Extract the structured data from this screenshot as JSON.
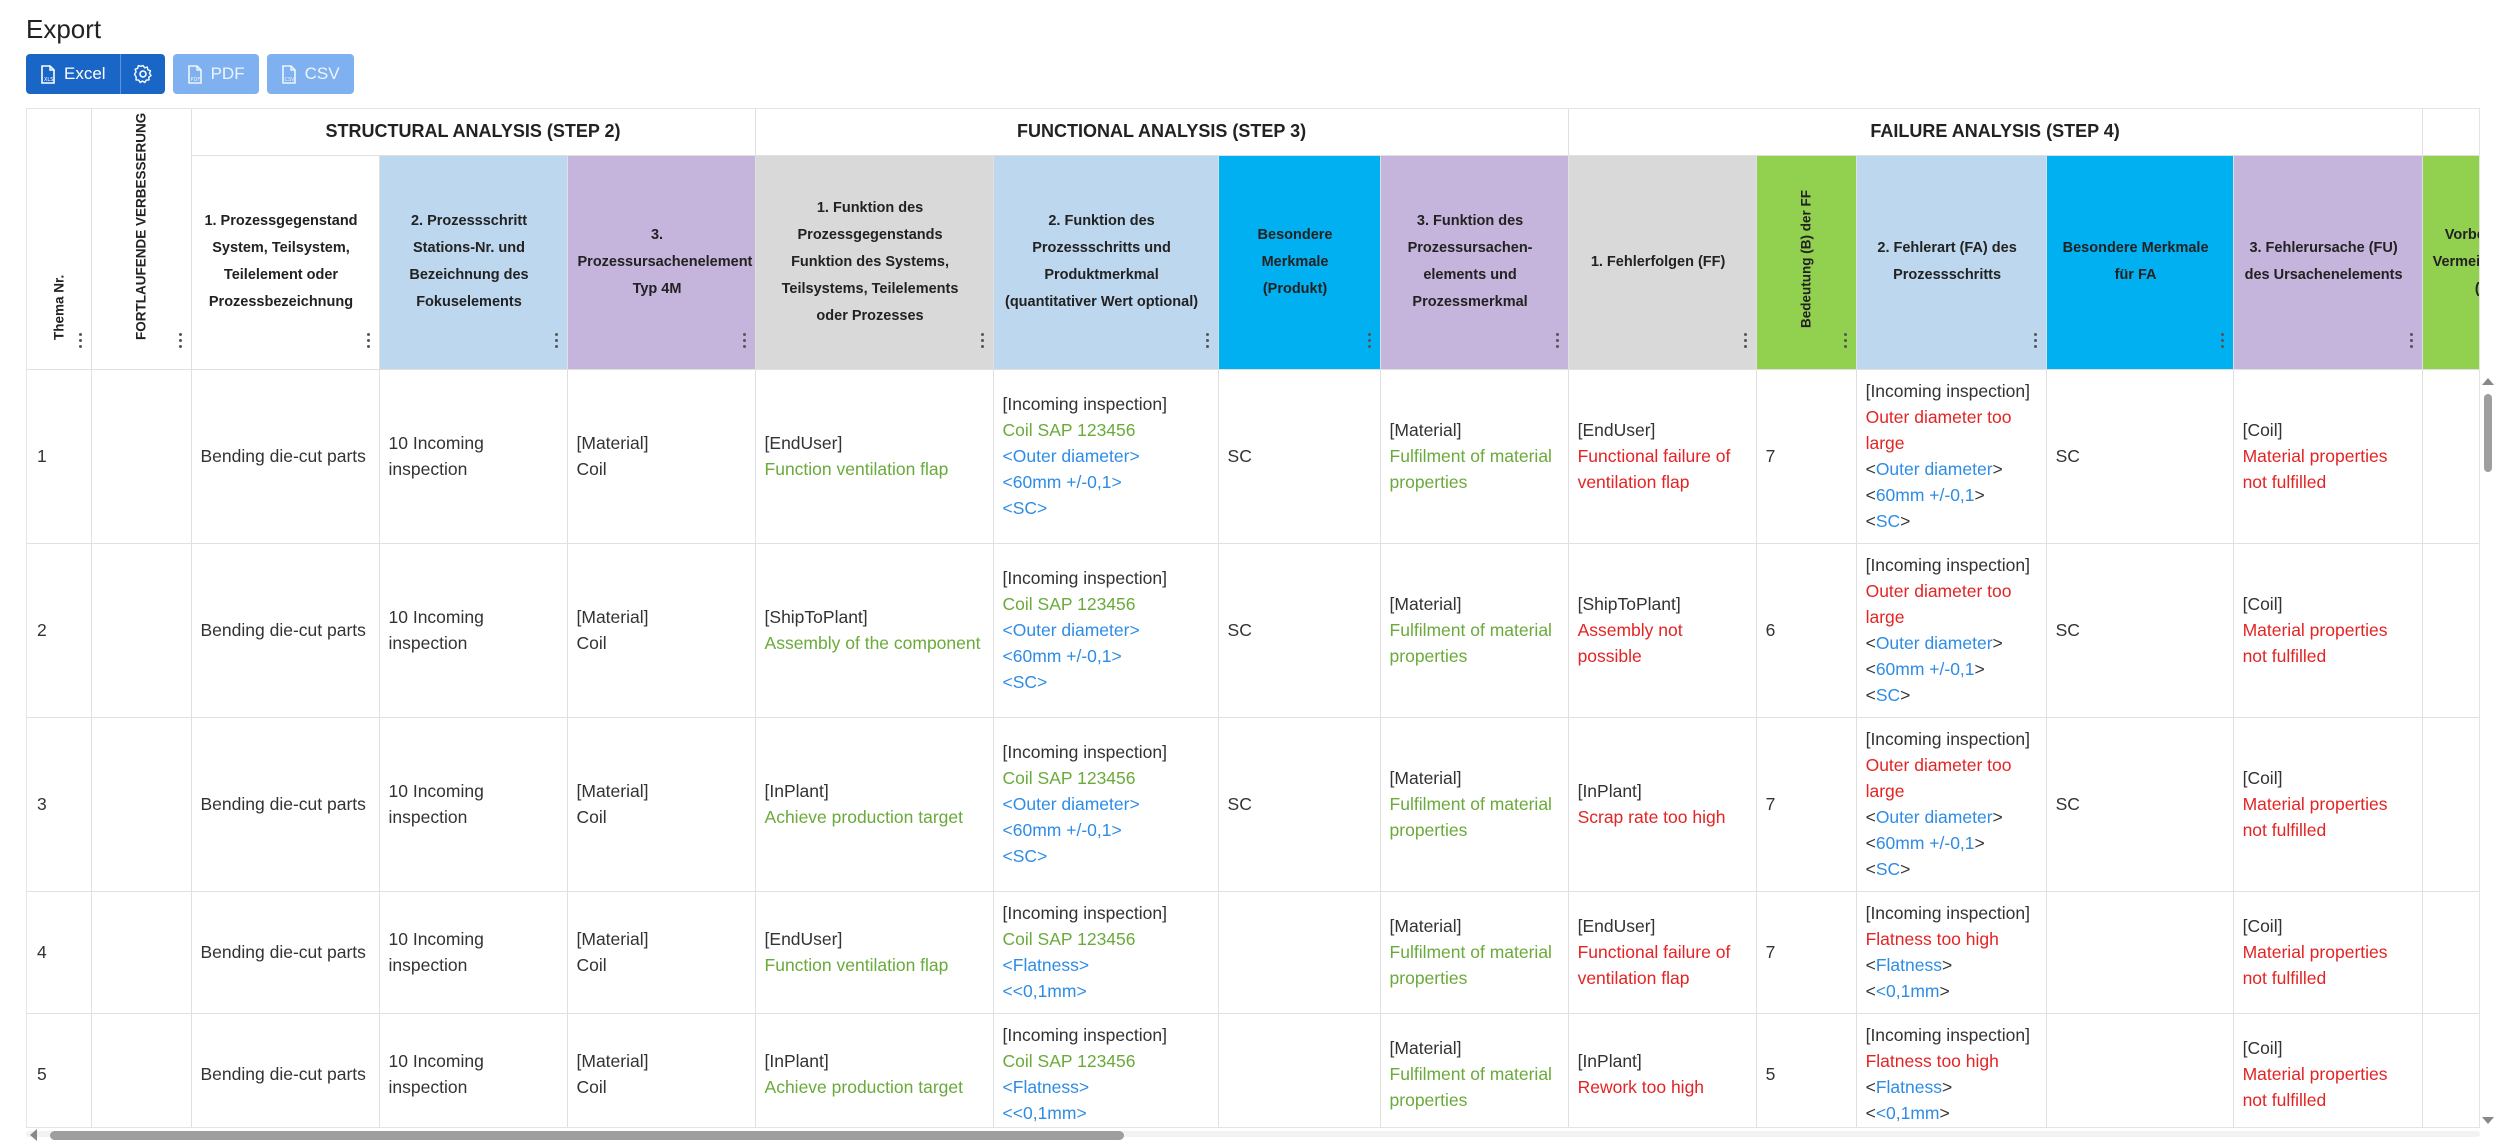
{
  "page": {
    "title": "Export"
  },
  "toolbar": {
    "excel_label": "Excel",
    "pdf_label": "PDF",
    "csv_label": "CSV"
  },
  "groups": {
    "structural": "STRUCTURAL ANALYSIS (STEP 2)",
    "functional": "FUNCTIONAL ANALYSIS (STEP 3)",
    "failure": "FAILURE ANALYSIS (STEP 4)"
  },
  "columns": {
    "thema": "Thema Nr.",
    "fortlaufende": "FORTLAUFENDE VERBESSERUNG",
    "s1": "1. Prozessgegenstand System, Teilsystem, Teilelement oder Prozessbezeichnung",
    "s2": "2. Prozessschritt Stations-Nr. und Bezeichnung des Fokuselements",
    "s3": "3. Prozessursachenelement Typ 4M",
    "f1": "1. Funktion des Prozessgegenstands Funktion des Systems, Teilsystems, Teilelements oder Prozesses",
    "f2": "2. Funktion des Prozessschritts und Produktmerkmal (quantitativer Wert optional)",
    "fbm": "Besondere Merkmale (Produkt)",
    "f3": "3. Funktion des Prozessursachen-elements und Prozessmerkmal",
    "a1": "1. Fehlerfolgen (FF)",
    "bed": "Bedeutung (B) der FF",
    "a2": "2. Fehlerart (FA) des Prozessschritts",
    "abm": "Besondere Merkmale für FA",
    "a3": "3. Fehlerursache (FU) des Ursachenelements",
    "vor": "Vorbeugende Vermeidungsmaßnahme (VM)"
  },
  "rows": [
    {
      "nr": "1",
      "s1": "Bending die-cut parts",
      "s2": "10 Incoming inspection",
      "s3a": "[Material]",
      "s3b": "Coil",
      "f1a": "[EndUser]",
      "f1b": "Function ventilation flap",
      "f2a": "[Incoming inspection]",
      "f2b": "Coil SAP 123456",
      "f2c": "<Outer diameter>",
      "f2d": "<60mm +/-0,1>",
      "f2e": "<SC>",
      "fbm": "SC",
      "f3a": "[Material]",
      "f3b": "Fulfilment of material properties",
      "a1a": "[EndUser]",
      "a1b": "Functional failure of ventilation flap",
      "bed": "7",
      "a2a": "[Incoming inspection]",
      "a2b": "Outer diameter too large",
      "a2c": "Outer diameter",
      "a2d": "60mm +/-0,1",
      "a2e": "SC",
      "abm": "SC",
      "a3a": "[Coil]",
      "a3b": "Material properties not fulfilled"
    },
    {
      "nr": "2",
      "s1": "Bending die-cut parts",
      "s2": "10 Incoming inspection",
      "s3a": "[Material]",
      "s3b": "Coil",
      "f1a": "[ShipToPlant]",
      "f1b": "Assembly of the component",
      "f2a": "[Incoming inspection]",
      "f2b": "Coil SAP 123456",
      "f2c": "<Outer diameter>",
      "f2d": "<60mm +/-0,1>",
      "f2e": "<SC>",
      "fbm": "SC",
      "f3a": "[Material]",
      "f3b": "Fulfilment of material properties",
      "a1a": "[ShipToPlant]",
      "a1b": "Assembly not possible",
      "bed": "6",
      "a2a": "[Incoming inspection]",
      "a2b": "Outer diameter too large",
      "a2c": "Outer diameter",
      "a2d": "60mm +/-0,1",
      "a2e": "SC",
      "abm": "SC",
      "a3a": "[Coil]",
      "a3b": "Material properties not fulfilled"
    },
    {
      "nr": "3",
      "s1": "Bending die-cut parts",
      "s2": "10 Incoming inspection",
      "s3a": "[Material]",
      "s3b": "Coil",
      "f1a": "[InPlant]",
      "f1b": "Achieve production target",
      "f2a": "[Incoming inspection]",
      "f2b": "Coil SAP 123456",
      "f2c": "<Outer diameter>",
      "f2d": "<60mm +/-0,1>",
      "f2e": "<SC>",
      "fbm": "SC",
      "f3a": "[Material]",
      "f3b": "Fulfilment of material properties",
      "a1a": "[InPlant]",
      "a1b": "Scrap rate too high",
      "bed": "7",
      "a2a": "[Incoming inspection]",
      "a2b": "Outer diameter too large",
      "a2c": "Outer diameter",
      "a2d": "60mm +/-0,1",
      "a2e": "SC",
      "abm": "SC",
      "a3a": "[Coil]",
      "a3b": "Material properties not fulfilled"
    },
    {
      "nr": "4",
      "s1": "Bending die-cut parts",
      "s2": "10 Incoming inspection",
      "s3a": "[Material]",
      "s3b": "Coil",
      "f1a": "[EndUser]",
      "f1b": "Function ventilation flap",
      "f2a": "[Incoming inspection]",
      "f2b": "Coil SAP 123456",
      "f2c": "<Flatness>",
      "f2d": "<<0,1mm>",
      "f2e": "",
      "fbm": "",
      "f3a": "[Material]",
      "f3b": "Fulfilment of material properties",
      "a1a": "[EndUser]",
      "a1b": "Functional failure of ventilation flap",
      "bed": "7",
      "a2a": "[Incoming inspection]",
      "a2b": "Flatness too high",
      "a2c": "Flatness",
      "a2d": "<0,1mm",
      "a2e": "",
      "abm": "",
      "a3a": "[Coil]",
      "a3b": "Material properties not fulfilled"
    },
    {
      "nr": "5",
      "s1": "Bending die-cut parts",
      "s2": "10 Incoming inspection",
      "s3a": "[Material]",
      "s3b": "Coil",
      "f1a": "[InPlant]",
      "f1b": "Achieve production target",
      "f2a": "[Incoming inspection]",
      "f2b": "Coil SAP 123456",
      "f2c": "<Flatness>",
      "f2d": "<<0,1mm>",
      "f2e": "",
      "fbm": "",
      "f3a": "[Material]",
      "f3b": "Fulfilment of material properties",
      "a1a": "[InPlant]",
      "a1b": "Rework too high",
      "bed": "5",
      "a2a": "[Incoming inspection]",
      "a2b": "Flatness too high",
      "a2c": "Flatness",
      "a2d": "<0,1mm",
      "a2e": "",
      "abm": "",
      "a3a": "[Coil]",
      "a3b": "Material properties not fulfilled"
    }
  ],
  "icons": {
    "excel": "file-excel-icon",
    "settings": "gear-icon",
    "pdf": "file-pdf-icon",
    "csv": "file-csv-icon",
    "menu": "kebab-menu-icon"
  },
  "colors": {
    "primary": "#1a66c7",
    "grey": "#d9d9d9",
    "light_blue": "#bdd7ee",
    "purple": "#c5b4db",
    "cyan": "#00b0f0",
    "green": "#92d050",
    "text_green": "#6aaa3a",
    "text_blue": "#2e8ce6",
    "text_red": "#e32424"
  }
}
